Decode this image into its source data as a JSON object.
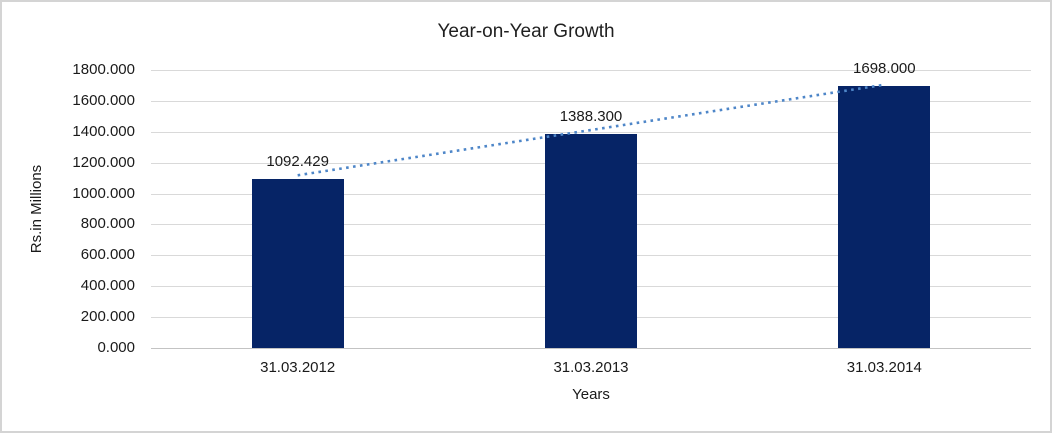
{
  "chart_data": {
    "type": "bar",
    "title": "Year-on-Year Growth",
    "xlabel": "Years",
    "ylabel": "Rs.in Millions",
    "categories": [
      "31.03.2012",
      "31.03.2013",
      "31.03.2014"
    ],
    "values": [
      1092.429,
      1388.3,
      1698.0
    ],
    "value_labels": [
      "1092.429",
      "1388.300",
      "1698.000"
    ],
    "ylim": [
      0,
      1800
    ],
    "ytick_step": 200,
    "ytick_labels": [
      "0.000",
      "200.000",
      "400.000",
      "600.000",
      "800.000",
      "1000.000",
      "1200.000",
      "1400.000",
      "1600.000",
      "1800.000"
    ],
    "grid": true,
    "legend": "none",
    "trendline": true,
    "colors": {
      "bar": "#062466",
      "trendline": "#4e86c8",
      "gridline": "#d9d9d9",
      "axis_line": "#c3c3c3",
      "text": "#1a1a1a",
      "frame_border": "#d4d4d4",
      "background": "#ffffff"
    }
  }
}
